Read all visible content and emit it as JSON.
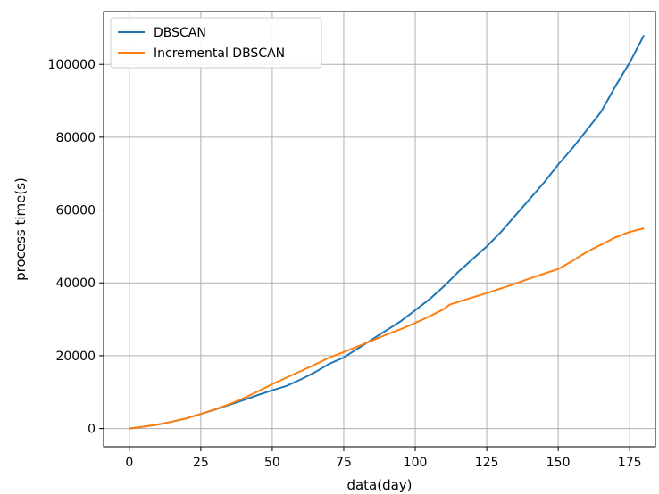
{
  "chart_data": {
    "type": "line",
    "xlabel": "data(day)",
    "ylabel": "process time(s)",
    "xlim": [
      -9,
      184
    ],
    "ylim": [
      -5000,
      114500
    ],
    "xticks": [
      0,
      25,
      50,
      75,
      100,
      125,
      150,
      175
    ],
    "yticks": [
      0,
      20000,
      40000,
      60000,
      80000,
      100000
    ],
    "grid": true,
    "legend_position": "top-left",
    "series": [
      {
        "name": "DBSCAN",
        "color": "#1f77b4",
        "x": [
          0,
          5,
          10,
          15,
          20,
          25,
          30,
          35,
          40,
          45,
          50,
          55,
          60,
          65,
          70,
          75,
          80,
          85,
          90,
          95,
          100,
          105,
          110,
          115,
          120,
          125,
          130,
          135,
          140,
          145,
          150,
          155,
          160,
          165,
          170,
          175,
          180
        ],
        "y": [
          0,
          500,
          1100,
          1900,
          2800,
          4000,
          5200,
          6500,
          7800,
          9200,
          10500,
          11700,
          13500,
          15500,
          17800,
          19500,
          22000,
          24500,
          27000,
          29500,
          32500,
          35500,
          39000,
          43000,
          46500,
          50000,
          54000,
          58500,
          63000,
          67500,
          72500,
          77000,
          82000,
          87000,
          94000,
          100500,
          108000
        ]
      },
      {
        "name": "Incremental DBSCAN",
        "color": "#ff7f0e",
        "x": [
          0,
          5,
          10,
          15,
          20,
          25,
          30,
          35,
          40,
          45,
          50,
          55,
          60,
          65,
          70,
          75,
          80,
          85,
          90,
          95,
          100,
          105,
          110,
          112,
          115,
          120,
          125,
          130,
          135,
          140,
          145,
          150,
          155,
          160,
          165,
          170,
          175,
          180
        ],
        "y": [
          0,
          500,
          1100,
          1900,
          2800,
          4000,
          5300,
          6700,
          8300,
          10200,
          12200,
          14000,
          15800,
          17600,
          19500,
          21000,
          22600,
          24200,
          25800,
          27300,
          29000,
          30800,
          32800,
          34000,
          34800,
          36000,
          37200,
          38500,
          39800,
          41200,
          42500,
          43800,
          46000,
          48500,
          50500,
          52500,
          54000,
          55000
        ]
      }
    ]
  }
}
